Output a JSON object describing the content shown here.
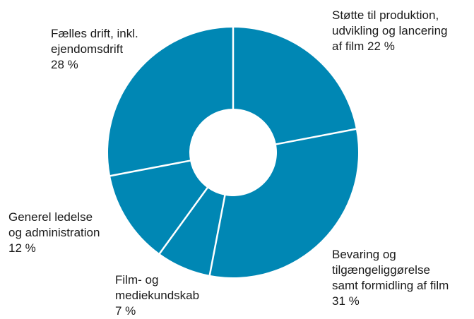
{
  "chart_data": {
    "type": "pie",
    "title": "",
    "categories": [
      "Støtte til produktion, udvikling og lancering af film",
      "Bevaring og tilgængeliggørelse samt formidling af film",
      "Film- og mediekundskab",
      "Generel ledelse og administration",
      "Fælles drift, inkl. ejendomsdrift"
    ],
    "values": [
      22,
      31,
      7,
      12,
      28
    ],
    "value_labels": [
      "22 %",
      "31 %",
      "7 %",
      "12 %",
      "28 %"
    ],
    "slice_color": "#0087b4",
    "separator_color": "#ffffff",
    "donut": true,
    "legend": "none"
  },
  "labels": [
    {
      "lines": [
        "Støtte til produktion,",
        "udvikling og lancering",
        "af film 22 %"
      ]
    },
    {
      "lines": [
        "Bevaring og",
        "tilgængeliggørelse",
        "samt formidling af film",
        "31 %"
      ]
    },
    {
      "lines": [
        "Film- og",
        "mediekundskab",
        "7 %"
      ]
    },
    {
      "lines": [
        "Generel ledelse",
        "og administration",
        "12 %"
      ]
    },
    {
      "lines": [
        "Fælles drift, inkl.",
        "ejendomsdrift",
        "28 %"
      ]
    }
  ]
}
